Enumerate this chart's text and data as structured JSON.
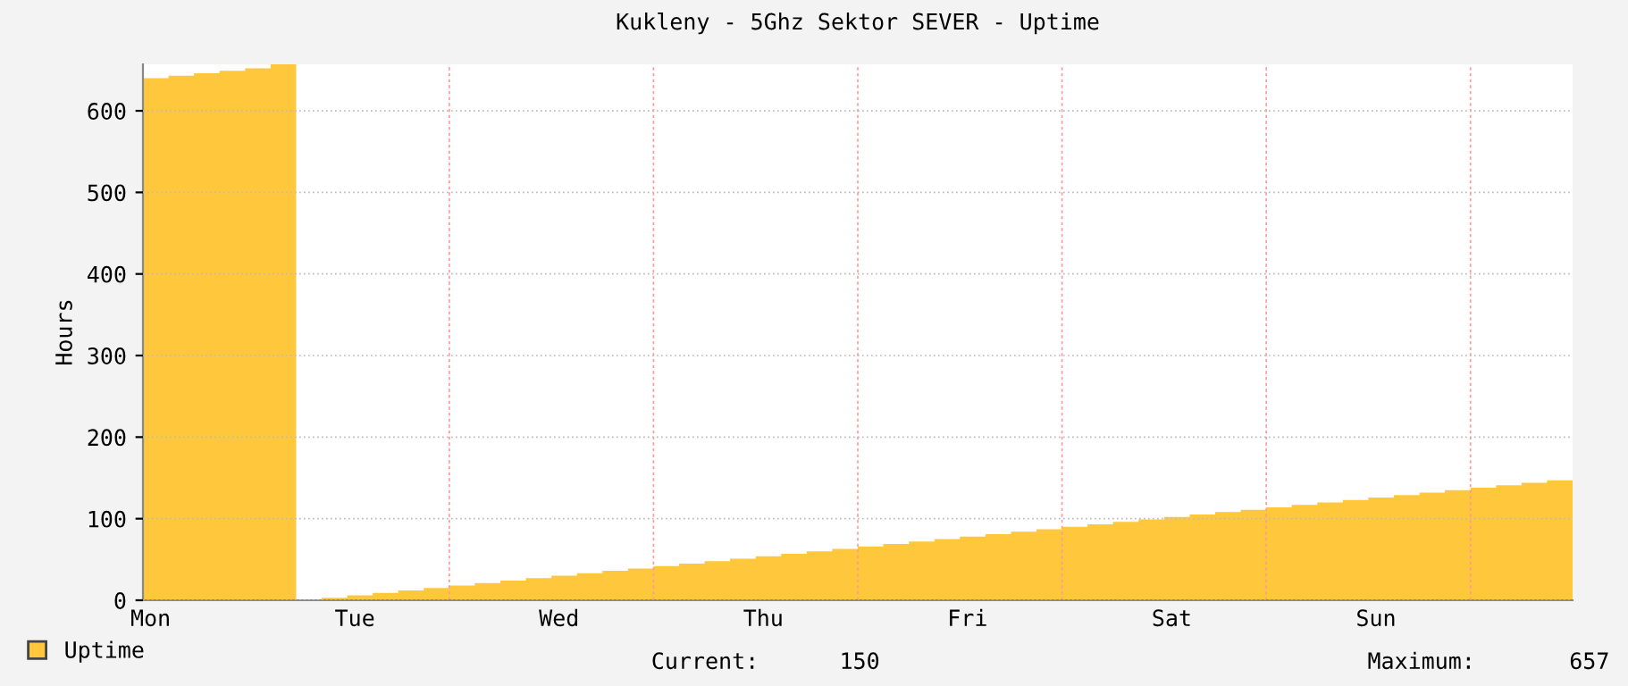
{
  "chart_data": {
    "type": "area",
    "title": "Kukleny - 5Ghz Sektor SEVER - Uptime",
    "ylabel": "Hours",
    "categories": [
      "Mon",
      null,
      null,
      null,
      null,
      null,
      null,
      null,
      "Tue",
      null,
      null,
      null,
      null,
      null,
      null,
      null,
      "Wed",
      null,
      null,
      null,
      null,
      null,
      null,
      null,
      "Thu",
      null,
      null,
      null,
      null,
      null,
      null,
      null,
      "Fri",
      null,
      null,
      null,
      null,
      null,
      null,
      null,
      "Sat",
      null,
      null,
      null,
      null,
      null,
      null,
      null,
      "Sun",
      null,
      null,
      null,
      null,
      null,
      null,
      null,
      null
    ],
    "series": [
      {
        "name": "Uptime",
        "color": "#ffc73b",
        "values": [
          640,
          643,
          646,
          649,
          652,
          657,
          0,
          3,
          6,
          9,
          12,
          15,
          18,
          21,
          24,
          27,
          30,
          33,
          36,
          39,
          42,
          45,
          48,
          51,
          54,
          57,
          60,
          63,
          66,
          69,
          72,
          75,
          78,
          81,
          84,
          87,
          90,
          93,
          96,
          99,
          102,
          105,
          108,
          111,
          114,
          117,
          120,
          123,
          126,
          129,
          132,
          135,
          138,
          141,
          144,
          147,
          150
        ]
      }
    ],
    "ylim": [
      0,
      657
    ],
    "yticks": [
      0,
      100,
      200,
      300,
      400,
      500,
      600
    ],
    "grid": true,
    "legend": "bottom",
    "annotations": [
      "Current:      150",
      "Maximum:       657"
    ]
  }
}
